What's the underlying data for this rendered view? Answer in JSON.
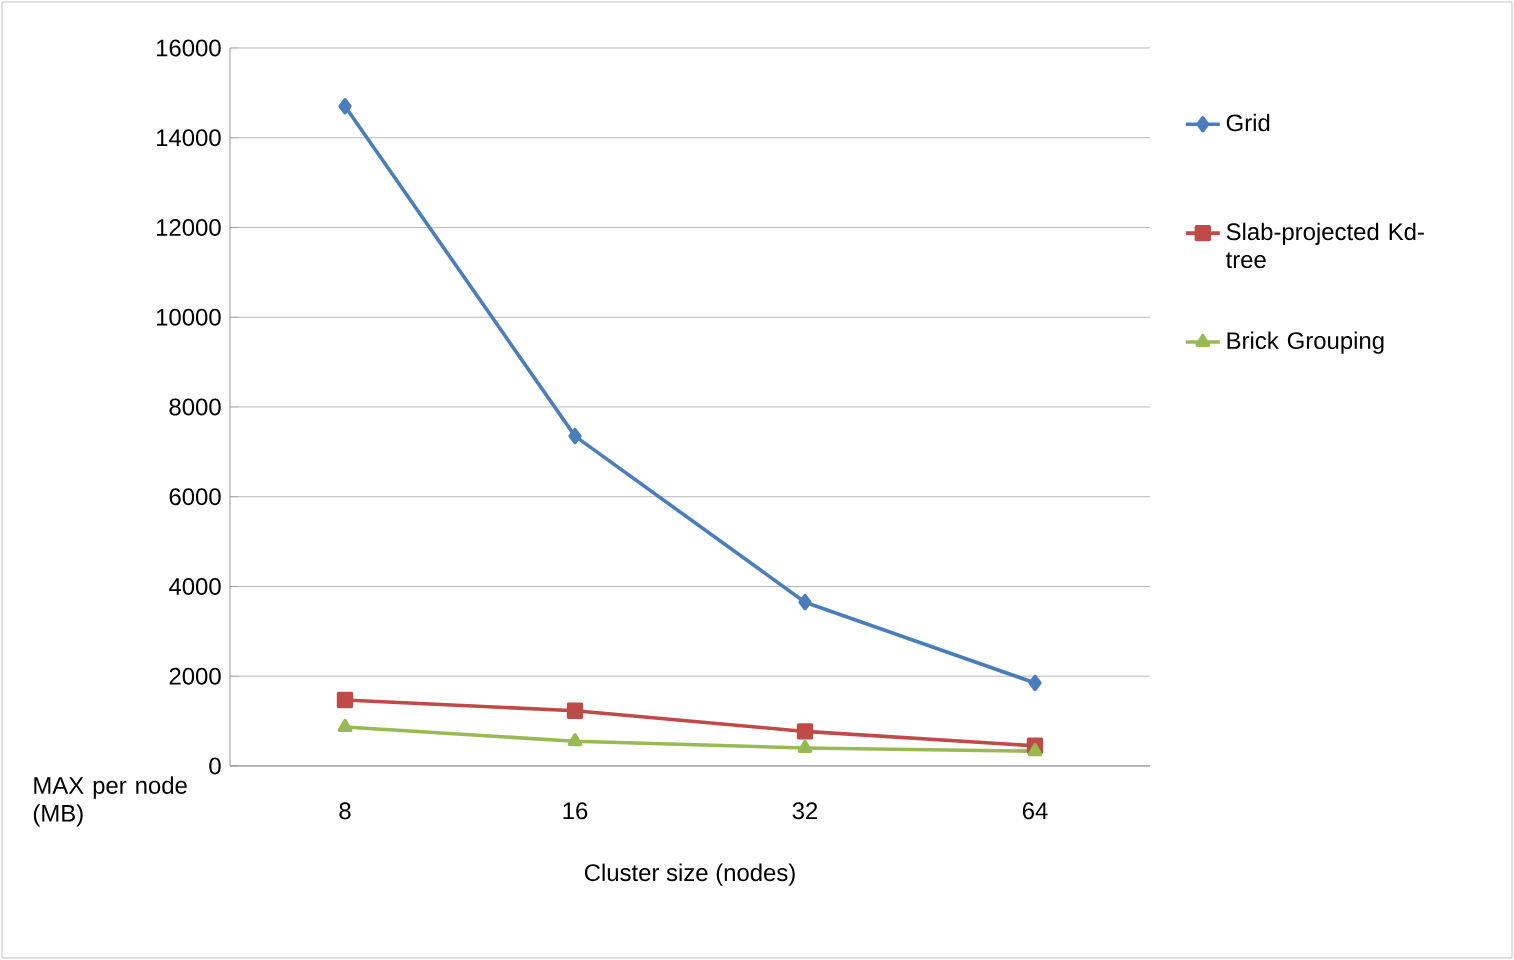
{
  "chart_data": {
    "type": "line",
    "xlabel": "Cluster size (nodes)",
    "ylabel": "MAX per node (MB)",
    "categories": [
      "8",
      "16",
      "32",
      "64"
    ],
    "ylim": [
      0,
      16000
    ],
    "yticks": [
      0,
      2000,
      4000,
      6000,
      8000,
      10000,
      12000,
      14000,
      16000
    ],
    "grid": "y",
    "legend": "right",
    "series": [
      {
        "name": "Grid",
        "color": "#4a7ebb",
        "marker": "diamond",
        "values": [
          14700,
          7350,
          3650,
          1850
        ]
      },
      {
        "name": "Slab-projected Kd-tree",
        "color": "#be4b48",
        "marker": "square",
        "values": [
          1470,
          1230,
          770,
          450
        ]
      },
      {
        "name": "Brick Grouping",
        "color": "#98b954",
        "marker": "triangle",
        "values": [
          870,
          550,
          400,
          330
        ]
      }
    ]
  }
}
